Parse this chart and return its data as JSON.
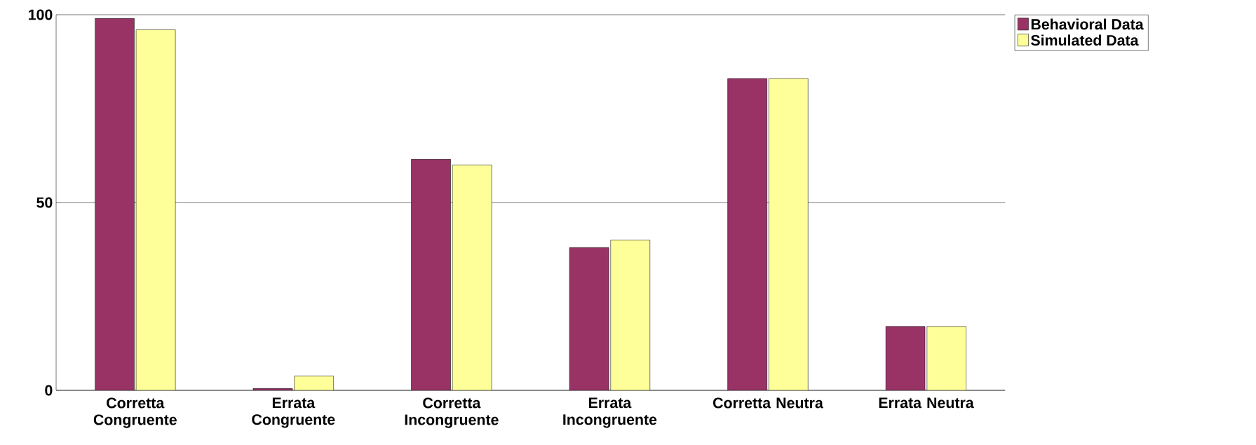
{
  "chart_data": {
    "type": "bar",
    "categories": [
      "Corretta Congruente",
      "Errata Congruente",
      "Corretta Incongruente",
      "Errata Incongruente",
      "Corretta Neutra",
      "Errata Neutra"
    ],
    "series": [
      {
        "name": "Behavioral Data",
        "color": "#993366",
        "values": [
          99,
          0.5,
          61.5,
          38,
          83,
          17
        ]
      },
      {
        "name": "Simulated Data",
        "color": "#ffff99",
        "values": [
          96,
          3.8,
          60,
          40,
          83,
          17
        ]
      }
    ],
    "ylim": [
      0,
      100
    ],
    "yticks": [
      0,
      50,
      100
    ],
    "grid": "y",
    "legend": "top right"
  }
}
